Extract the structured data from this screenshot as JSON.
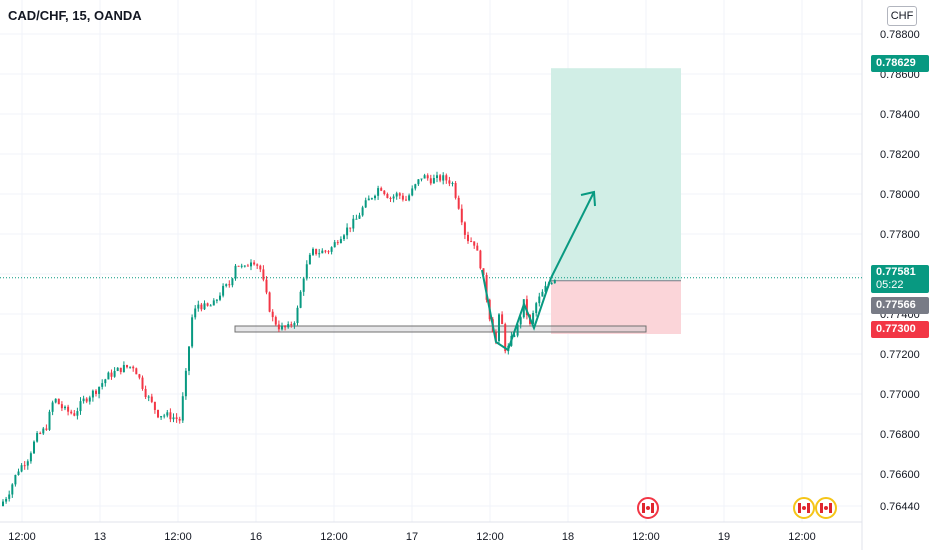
{
  "header": {
    "symbol": "CAD/CHF, 15, OANDA",
    "currency": "CHF"
  },
  "chart_data": {
    "type": "candlestick",
    "symbol": "CAD/CHF",
    "interval": "15",
    "source": "OANDA",
    "currency": "CHF",
    "y_axis": {
      "range": [
        0.7636,
        0.7892
      ],
      "ticks": [
        "0.78800",
        "0.78600",
        "0.78400",
        "0.78200",
        "0.78000",
        "0.77800",
        "0.77600",
        "0.77400",
        "0.77200",
        "0.77000",
        "0.76800",
        "0.76600",
        "0.76440"
      ]
    },
    "x_axis": {
      "ticks": [
        "12:00",
        "13",
        "12:00",
        "16",
        "12:00",
        "17",
        "12:00",
        "18",
        "12:00",
        "19",
        "12:00"
      ]
    },
    "price_path": [
      [
        0,
        0.7644
      ],
      [
        8,
        0.765
      ],
      [
        18,
        0.7662
      ],
      [
        28,
        0.7668
      ],
      [
        36,
        0.7678
      ],
      [
        46,
        0.7683
      ],
      [
        54,
        0.7698
      ],
      [
        64,
        0.7692
      ],
      [
        74,
        0.769
      ],
      [
        84,
        0.7697
      ],
      [
        96,
        0.7702
      ],
      [
        108,
        0.7709
      ],
      [
        122,
        0.7713
      ],
      [
        134,
        0.7714
      ],
      [
        146,
        0.77
      ],
      [
        158,
        0.769
      ],
      [
        170,
        0.7689
      ],
      [
        180,
        0.7687
      ],
      [
        186,
        0.771
      ],
      [
        192,
        0.7738
      ],
      [
        198,
        0.7745
      ],
      [
        206,
        0.7743
      ],
      [
        214,
        0.7745
      ],
      [
        222,
        0.7752
      ],
      [
        230,
        0.7755
      ],
      [
        236,
        0.7766
      ],
      [
        244,
        0.7762
      ],
      [
        252,
        0.7768
      ],
      [
        260,
        0.7763
      ],
      [
        266,
        0.775
      ],
      [
        272,
        0.7738
      ],
      [
        280,
        0.7733
      ],
      [
        288,
        0.7733
      ],
      [
        296,
        0.7738
      ],
      [
        304,
        0.776
      ],
      [
        312,
        0.7771
      ],
      [
        320,
        0.7771
      ],
      [
        330,
        0.7772
      ],
      [
        340,
        0.7779
      ],
      [
        348,
        0.7783
      ],
      [
        356,
        0.7787
      ],
      [
        364,
        0.7794
      ],
      [
        372,
        0.7799
      ],
      [
        380,
        0.7804
      ],
      [
        390,
        0.7798
      ],
      [
        398,
        0.78
      ],
      [
        406,
        0.7797
      ],
      [
        414,
        0.7803
      ],
      [
        422,
        0.7809
      ],
      [
        432,
        0.7807
      ],
      [
        442,
        0.7808
      ],
      [
        452,
        0.7806
      ],
      [
        460,
        0.7792
      ],
      [
        466,
        0.7778
      ],
      [
        474,
        0.7776
      ],
      [
        482,
        0.7762
      ],
      [
        490,
        0.7738
      ],
      [
        496,
        0.7726
      ],
      [
        500,
        0.7742
      ],
      [
        506,
        0.772
      ],
      [
        512,
        0.7728
      ],
      [
        518,
        0.7734
      ],
      [
        524,
        0.7746
      ],
      [
        530,
        0.7734
      ],
      [
        536,
        0.7745
      ],
      [
        542,
        0.775
      ],
      [
        548,
        0.7755
      ],
      [
        554,
        0.7758
      ]
    ],
    "current_price": "0.77581",
    "countdown": "05:22",
    "entry_price": "0.77566",
    "take_profit": "0.78629",
    "stop_loss": "0.77300",
    "support_zone": [
      0.7731,
      0.7734
    ],
    "projection_target": 0.7801,
    "event_markers": [
      "canada-flag",
      "canada-flag",
      "canada-flag"
    ],
    "colors": {
      "up": "#089981",
      "down": "#f23645",
      "tp_zone": "#d1eee6",
      "sl_zone": "#fbd5d9",
      "grid": "#f0f3fa",
      "axis_text": "#131722",
      "last_price_line": "#089981"
    }
  }
}
